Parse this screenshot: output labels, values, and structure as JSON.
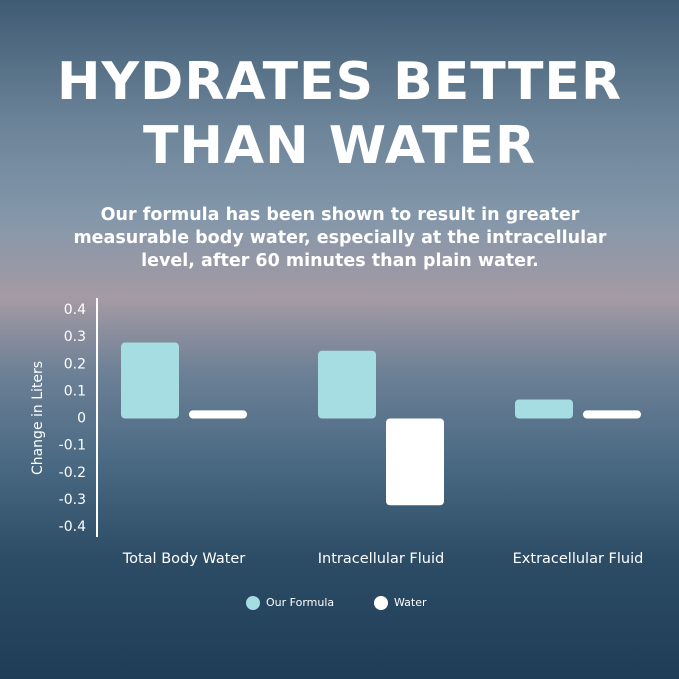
{
  "chart_data": {
    "type": "bar",
    "title": "HYDRATES BETTER THAN WATER",
    "subtitle": "Our formula has been shown to result in greater measurable body water, especially at the intracellular level, after 60 minutes than plain water.",
    "y_label": "Change in Liters",
    "categories": [
      "Total Body Water",
      "Intracellular Fluid",
      "Extracellular Fluid"
    ],
    "series": [
      {
        "name": "Our Formula",
        "color": "#a5dde3",
        "values": [
          0.28,
          0.25,
          0.07
        ]
      },
      {
        "name": "Water",
        "color": "#ffffff",
        "values": [
          0.03,
          -0.32,
          0.03
        ]
      }
    ],
    "ylim": [
      -0.4,
      0.4
    ],
    "yticks": [
      0.4,
      0.3,
      0.2,
      0.1,
      0,
      -0.1,
      -0.2,
      -0.3,
      -0.4
    ],
    "legend": "bottom"
  }
}
